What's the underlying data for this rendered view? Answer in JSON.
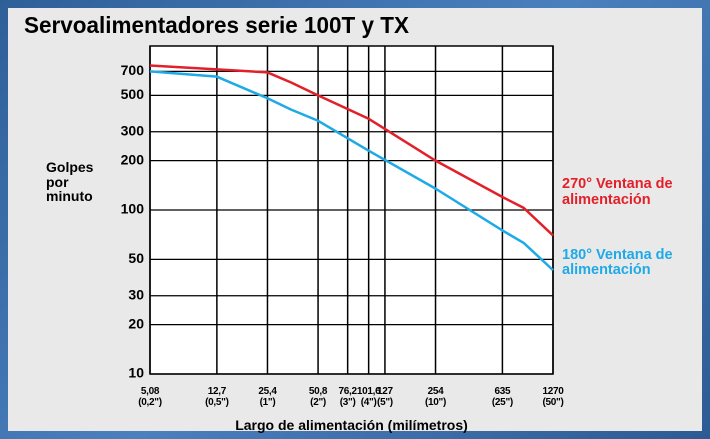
{
  "chart_data": {
    "type": "line",
    "title": "Servoalimentadores serie 100T y TX",
    "x_label": "Largo de alimentación (milímetros)",
    "y_label": "Golpes por minuto",
    "log_x": true,
    "log_y": true,
    "grid": true,
    "xlim": [
      5.08,
      1270
    ],
    "ylim": [
      10,
      1000
    ],
    "xticks": [
      {
        "value": 5.08,
        "label": "5,08\n(0,2\")"
      },
      {
        "value": 12.7,
        "label": "12,7\n(0,5\")"
      },
      {
        "value": 25.4,
        "label": "25,4\n(1\")"
      },
      {
        "value": 50.8,
        "label": "50,8\n(2\")"
      },
      {
        "value": 76.2,
        "label": "76,2\n(3\")"
      },
      {
        "value": 101.6,
        "label": "101,6\n(4\")"
      },
      {
        "value": 127,
        "label": "127\n(5\")"
      },
      {
        "value": 254,
        "label": "254\n(10\")"
      },
      {
        "value": 635,
        "label": "635\n(25\")"
      },
      {
        "value": 1270,
        "label": "1270\n(50\")"
      }
    ],
    "yticks": [
      10,
      20,
      30,
      50,
      100,
      200,
      300,
      500,
      700
    ],
    "x": [
      5.08,
      12.7,
      25.4,
      35,
      50.8,
      101.6,
      254,
      635,
      850,
      1270
    ],
    "series": [
      {
        "name": "270° Ventana de alimentación",
        "color": "#e3202a",
        "values": [
          760,
          720,
          690,
          600,
          500,
          360,
          200,
          120,
          103,
          70
        ]
      },
      {
        "name": "180° Ventana de alimentación",
        "color": "#1eaae7",
        "values": [
          700,
          650,
          480,
          410,
          350,
          230,
          135,
          75,
          63,
          43
        ]
      }
    ]
  }
}
